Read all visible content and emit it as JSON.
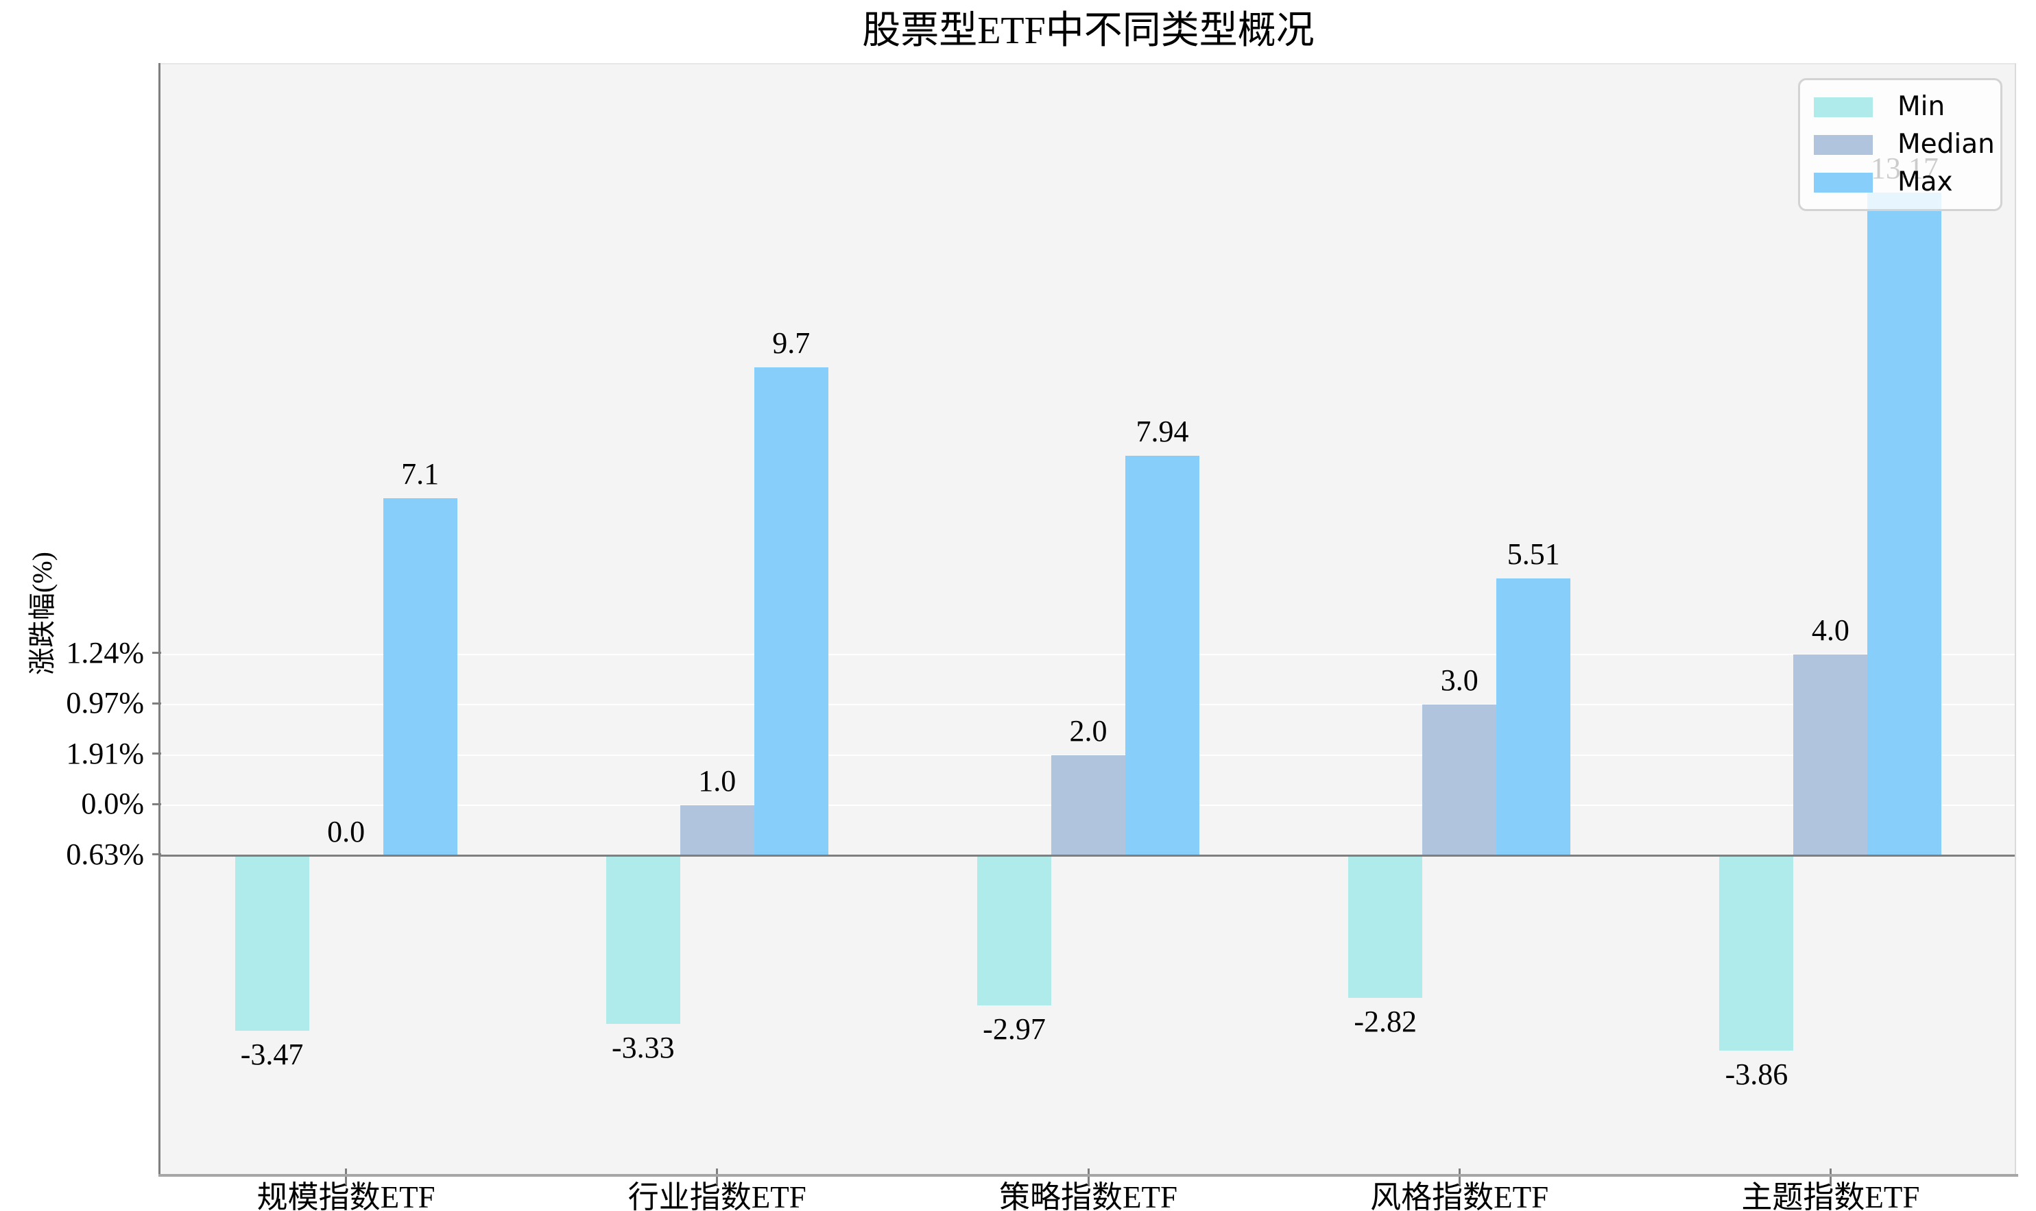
{
  "chart_data": {
    "type": "bar",
    "title": "股票型ETF中不同类型概况",
    "ylabel": "涨跌幅(%)",
    "xlabel": "",
    "categories": [
      "规模指数ETF",
      "行业指数ETF",
      "策略指数ETF",
      "风格指数ETF",
      "主题指数ETF"
    ],
    "series": [
      {
        "name": "Min",
        "color": "#aeebea",
        "values": [
          -3.47,
          -3.33,
          -2.97,
          -2.82,
          -3.86
        ],
        "labels": [
          "-3.47",
          "-3.33",
          "-2.97",
          "-2.82",
          "-3.86"
        ]
      },
      {
        "name": "Median",
        "color": "#b0c4de",
        "values": [
          0.0,
          1.0,
          2.0,
          3.0,
          4.0
        ],
        "labels": [
          "0.0",
          "1.0",
          "2.0",
          "3.0",
          "4.0"
        ]
      },
      {
        "name": "Max",
        "color": "#87cefa",
        "values": [
          7.1,
          9.7,
          7.94,
          5.51,
          13.17
        ],
        "labels": [
          "7.1",
          "9.7",
          "7.94",
          "5.51",
          "13.17"
        ]
      }
    ],
    "yticks": [
      {
        "value": 4,
        "label": "1.24%"
      },
      {
        "value": 3,
        "label": "0.97%"
      },
      {
        "value": 2,
        "label": "1.91%"
      },
      {
        "value": 1,
        "label": "0.0%"
      },
      {
        "value": 0,
        "label": "0.63%"
      }
    ],
    "ylim": [
      -6.34,
      15.71
    ],
    "grid": true,
    "legend_position": "upper right",
    "colors": {
      "figure_background": "#ffffff",
      "plot_background": "#f4f4f4",
      "gridline": "#ffffff",
      "zero_line": "#7f7f7f",
      "left_spine": "#7f7f7f",
      "bottom_spine": "#a6a6a6",
      "legend_border": "#d3d3d3"
    }
  }
}
